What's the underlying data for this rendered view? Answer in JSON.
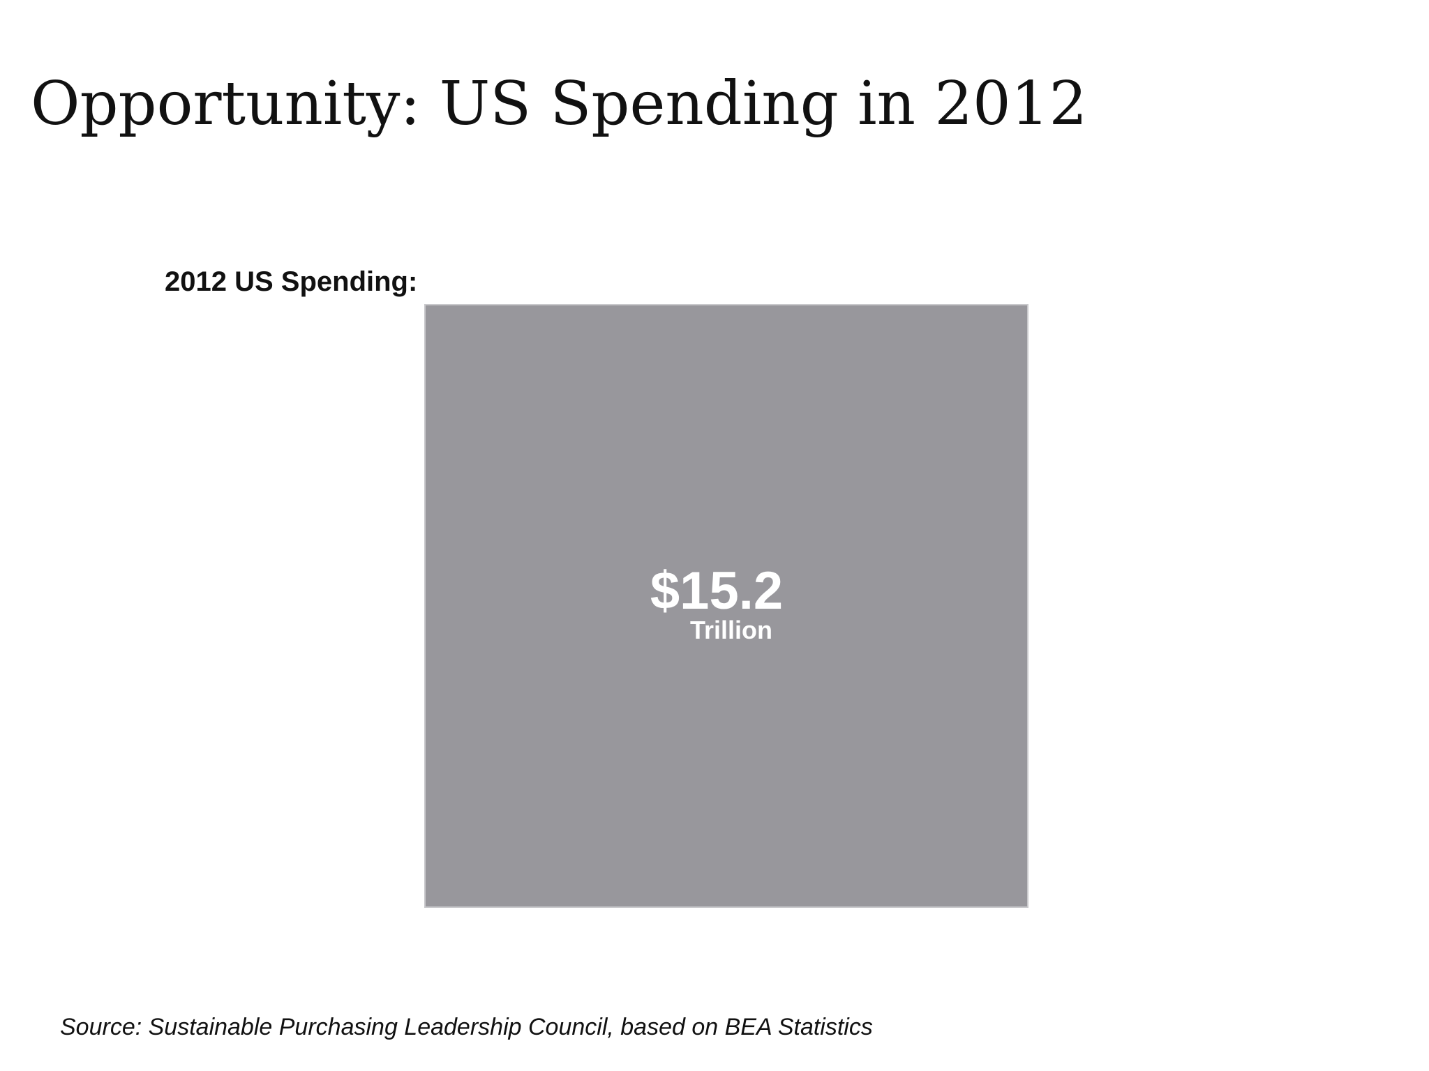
{
  "slide": {
    "title": "Opportunity: US Spending in 2012",
    "source": "Source: Sustainable Purchasing Leadership Council, based on BEA Statistics"
  },
  "chart_data": {
    "type": "area",
    "title": "2012 US Spending:",
    "series": [
      {
        "name": "2012 US Spending",
        "value": 15.2,
        "value_label": "$15.2",
        "unit_label": "Trillion",
        "color": "#98979c"
      }
    ]
  }
}
